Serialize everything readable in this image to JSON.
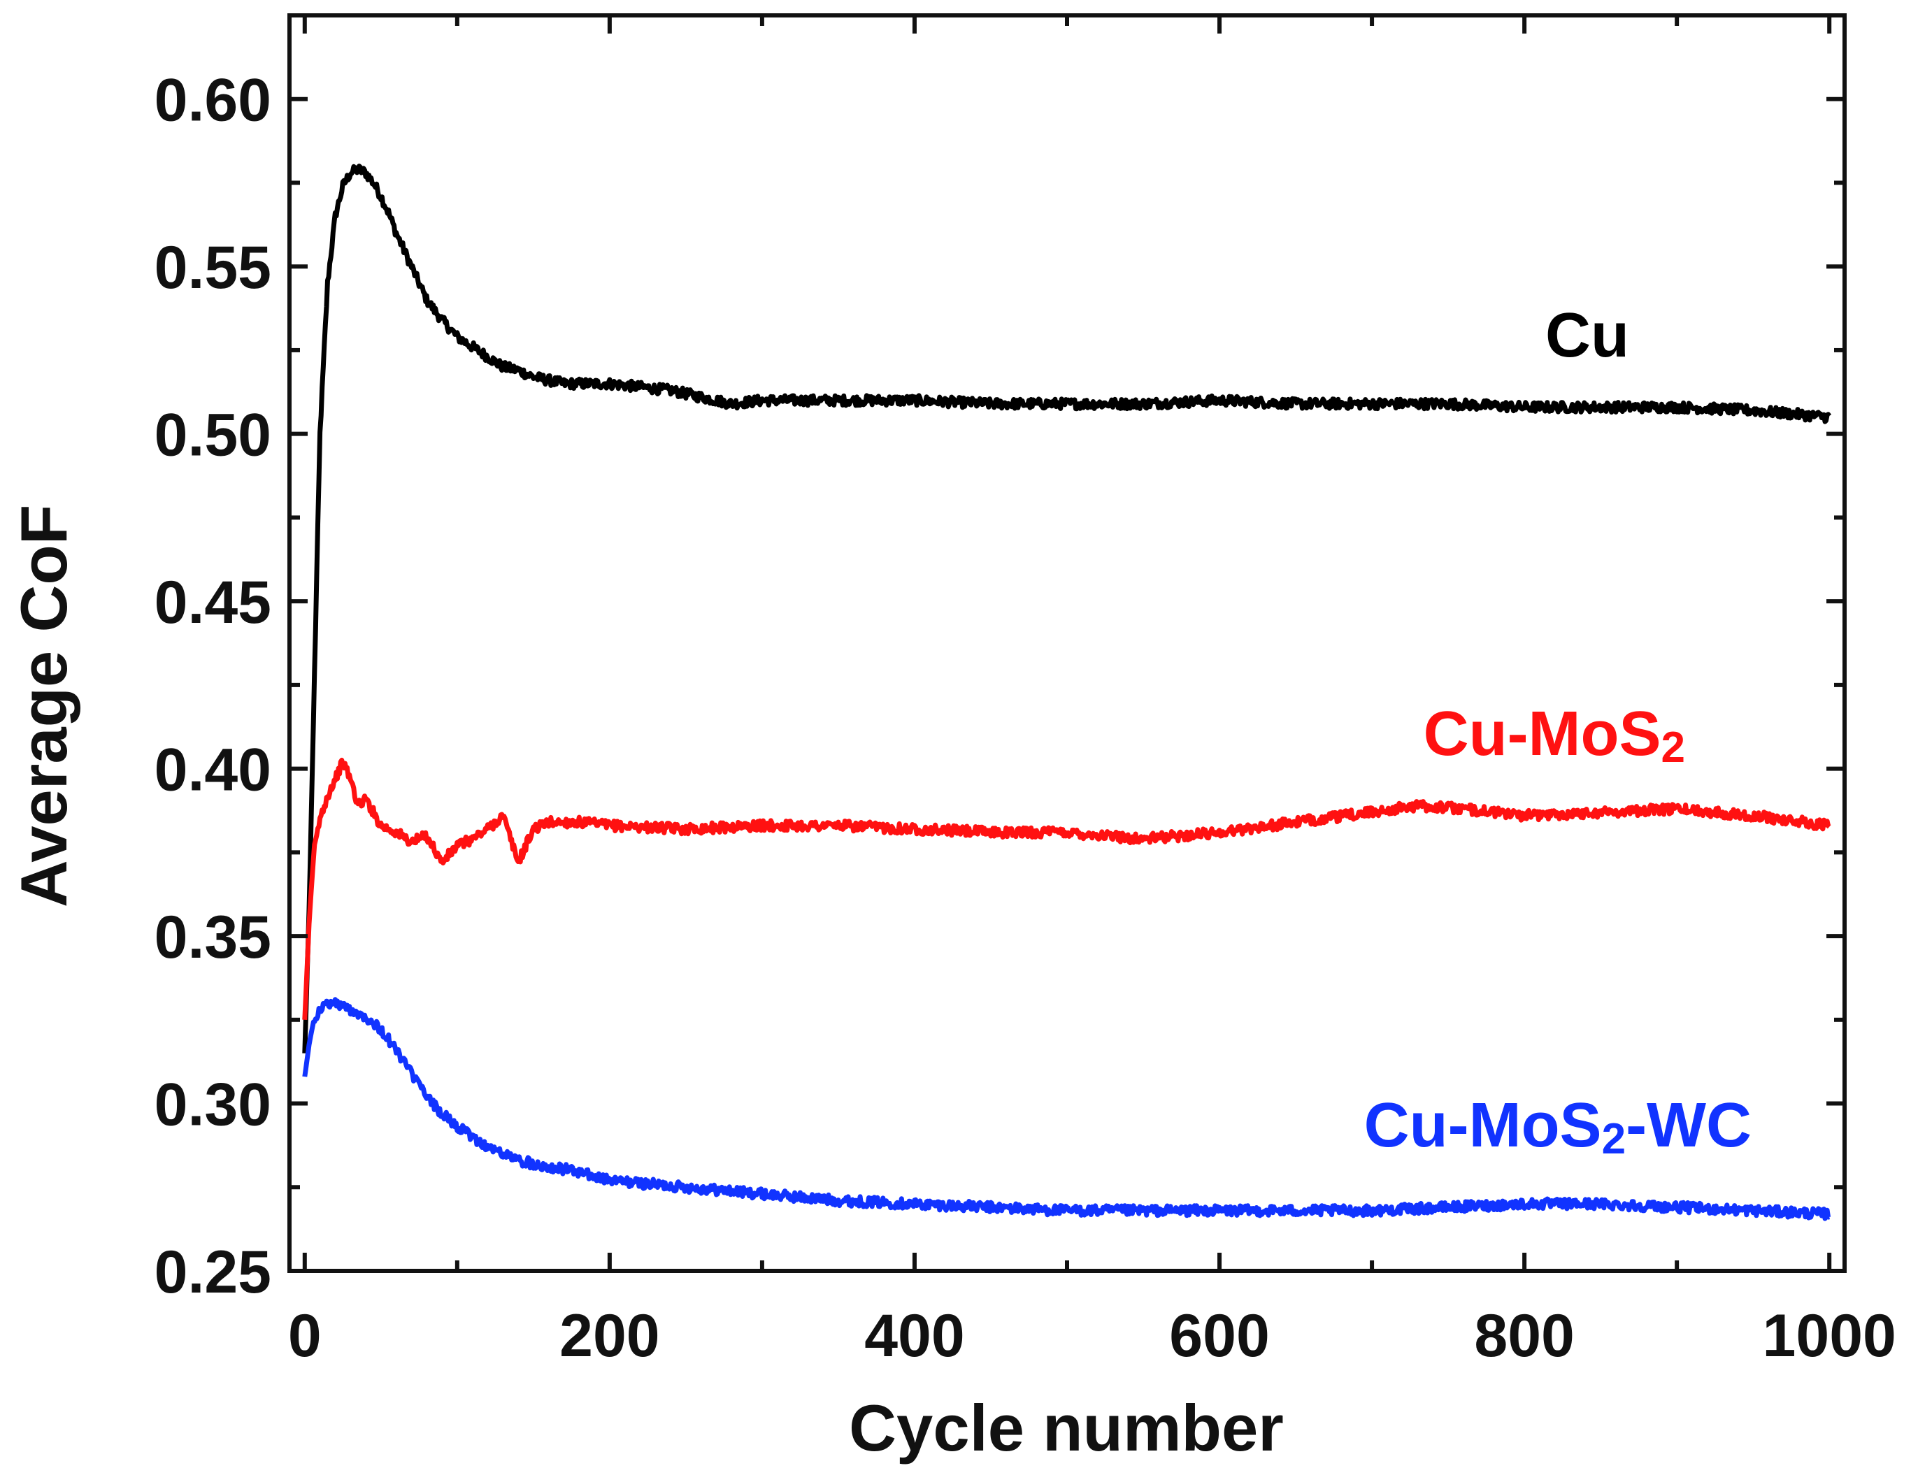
{
  "chart_data": {
    "type": "line",
    "title": "",
    "xlabel": "Cycle number",
    "ylabel": "Average CoF",
    "xlim": [
      -10,
      1010
    ],
    "ylim": [
      0.25,
      0.625
    ],
    "xticks": [
      0,
      200,
      400,
      600,
      800,
      1000
    ],
    "xtick_labels": [
      "0",
      "200",
      "400",
      "600",
      "800",
      "1000"
    ],
    "yticks": [
      0.25,
      0.3,
      0.35,
      0.4,
      0.45,
      0.5,
      0.55,
      0.6
    ],
    "ytick_labels": [
      "0.25",
      "0.30",
      "0.35",
      "0.40",
      "0.45",
      "0.50",
      "0.55",
      "0.60"
    ],
    "grid": false,
    "legend": "inline labels at right of each curve",
    "series": [
      {
        "name": "Cu",
        "label_main": "Cu",
        "label_sub": "",
        "label_suffix": "",
        "color": "#000000",
        "x": [
          0,
          3,
          6,
          10,
          15,
          20,
          25,
          30,
          35,
          40,
          45,
          50,
          55,
          60,
          65,
          70,
          75,
          80,
          90,
          100,
          110,
          120,
          130,
          140,
          150,
          160,
          170,
          180,
          200,
          220,
          240,
          260,
          280,
          300,
          350,
          400,
          450,
          500,
          550,
          600,
          650,
          700,
          750,
          800,
          850,
          900,
          950,
          1000
        ],
        "y": [
          0.315,
          0.36,
          0.42,
          0.5,
          0.545,
          0.565,
          0.574,
          0.578,
          0.579,
          0.578,
          0.575,
          0.571,
          0.566,
          0.56,
          0.555,
          0.55,
          0.545,
          0.54,
          0.534,
          0.529,
          0.526,
          0.523,
          0.52,
          0.519,
          0.517,
          0.516,
          0.515,
          0.515,
          0.515,
          0.514,
          0.513,
          0.511,
          0.509,
          0.51,
          0.51,
          0.51,
          0.509,
          0.509,
          0.509,
          0.51,
          0.509,
          0.509,
          0.509,
          0.508,
          0.508,
          0.508,
          0.507,
          0.505
        ]
      },
      {
        "name": "Cu-MoS2",
        "label_main": "Cu-MoS",
        "label_sub": "2",
        "label_suffix": "",
        "color": "#ff1111",
        "x": [
          0,
          3,
          6,
          10,
          15,
          20,
          25,
          30,
          35,
          40,
          50,
          60,
          70,
          80,
          90,
          100,
          110,
          120,
          130,
          140,
          150,
          160,
          180,
          200,
          250,
          300,
          350,
          400,
          450,
          500,
          550,
          600,
          650,
          700,
          730,
          760,
          800,
          850,
          900,
          950,
          1000
        ],
        "y": [
          0.325,
          0.355,
          0.375,
          0.385,
          0.392,
          0.397,
          0.402,
          0.397,
          0.389,
          0.391,
          0.383,
          0.381,
          0.378,
          0.38,
          0.372,
          0.377,
          0.379,
          0.382,
          0.386,
          0.372,
          0.382,
          0.384,
          0.384,
          0.383,
          0.382,
          0.383,
          0.383,
          0.382,
          0.381,
          0.381,
          0.379,
          0.381,
          0.384,
          0.387,
          0.389,
          0.388,
          0.386,
          0.387,
          0.388,
          0.386,
          0.383
        ]
      },
      {
        "name": "Cu-MoS2-WC",
        "label_main": "Cu-MoS",
        "label_sub": "2",
        "label_suffix": "-WC",
        "color": "#1133ff",
        "x": [
          0,
          3,
          6,
          10,
          15,
          20,
          25,
          30,
          40,
          50,
          60,
          70,
          80,
          90,
          100,
          110,
          120,
          130,
          140,
          150,
          175,
          200,
          250,
          300,
          350,
          400,
          450,
          500,
          550,
          600,
          650,
          700,
          750,
          800,
          850,
          900,
          950,
          1000
        ],
        "y": [
          0.308,
          0.318,
          0.325,
          0.328,
          0.33,
          0.33,
          0.329,
          0.328,
          0.326,
          0.322,
          0.316,
          0.309,
          0.302,
          0.297,
          0.293,
          0.29,
          0.287,
          0.285,
          0.283,
          0.282,
          0.28,
          0.277,
          0.275,
          0.273,
          0.271,
          0.27,
          0.269,
          0.268,
          0.268,
          0.268,
          0.268,
          0.268,
          0.269,
          0.27,
          0.27,
          0.269,
          0.268,
          0.267
        ]
      }
    ]
  }
}
